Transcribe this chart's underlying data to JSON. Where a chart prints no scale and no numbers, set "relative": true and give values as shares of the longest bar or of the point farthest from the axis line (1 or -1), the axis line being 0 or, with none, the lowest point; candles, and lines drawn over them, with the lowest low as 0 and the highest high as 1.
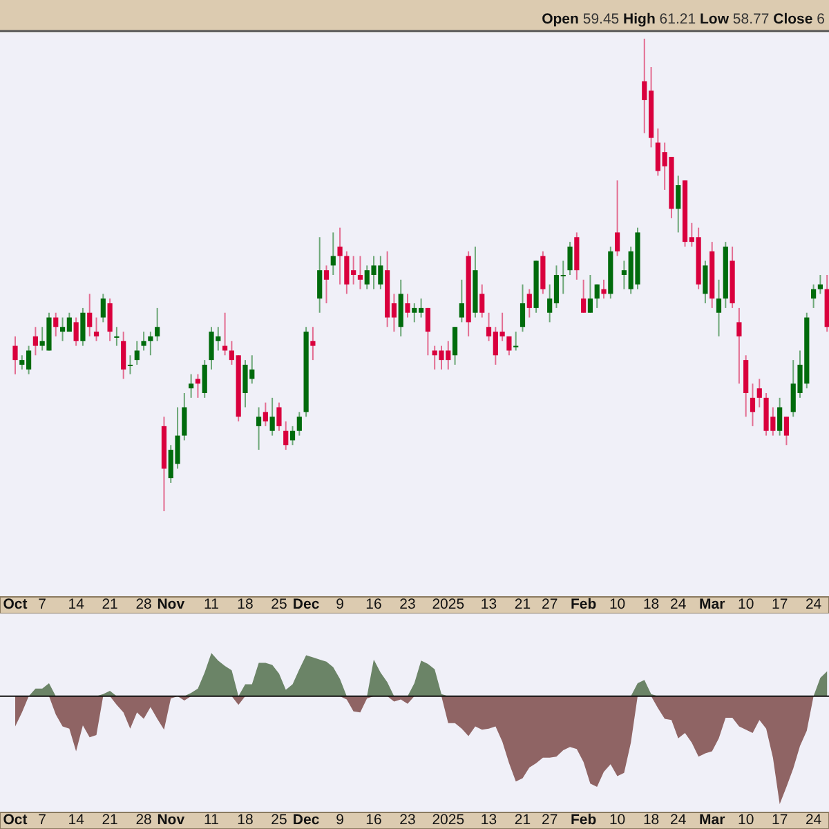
{
  "chart_data": [
    {
      "type": "candlestick",
      "relative": true,
      "annotations": [
        "Open 59.45 High 61.21 Low 58.77 Close 6"
      ],
      "categories": [
        "Oct",
        null,
        null,
        null,
        "7",
        null,
        null,
        null,
        null,
        "14",
        null,
        null,
        null,
        null,
        "21",
        null,
        null,
        null,
        null,
        "28",
        null,
        null,
        null,
        "Nov",
        null,
        null,
        null,
        null,
        null,
        "11",
        null,
        null,
        null,
        null,
        "18",
        null,
        null,
        null,
        null,
        "25",
        null,
        null,
        null,
        "Dec",
        null,
        null,
        null,
        null,
        "9",
        null,
        null,
        null,
        null,
        "16",
        null,
        null,
        null,
        null,
        "23",
        null,
        null,
        null,
        null,
        null,
        "2025",
        null,
        null,
        null,
        null,
        null,
        "13",
        null,
        null,
        null,
        null,
        "21",
        null,
        null,
        null,
        "27",
        null,
        null,
        null,
        null,
        "Feb",
        null,
        null,
        null,
        null,
        "10",
        null,
        null,
        null,
        null,
        "18",
        null,
        null,
        null,
        "24",
        null,
        null,
        null,
        null,
        "Mar",
        null,
        null,
        null,
        null,
        "10",
        null,
        null,
        null,
        null,
        "17",
        null,
        null,
        null,
        null,
        "24",
        null,
        null
      ],
      "ohlc": [
        [
          0.35,
          0.37,
          0.29,
          0.32
        ],
        [
          0.31,
          0.33,
          0.3,
          0.32
        ],
        [
          0.3,
          0.35,
          0.29,
          0.34
        ],
        [
          0.37,
          0.39,
          0.33,
          0.35
        ],
        [
          0.35,
          0.39,
          0.34,
          0.36
        ],
        [
          0.34,
          0.42,
          0.34,
          0.41
        ],
        [
          0.41,
          0.42,
          0.37,
          0.39
        ],
        [
          0.38,
          0.41,
          0.36,
          0.39
        ],
        [
          0.38,
          0.42,
          0.38,
          0.41
        ],
        [
          0.4,
          0.41,
          0.35,
          0.36
        ],
        [
          0.36,
          0.43,
          0.35,
          0.42
        ],
        [
          0.42,
          0.46,
          0.37,
          0.39
        ],
        [
          0.38,
          0.41,
          0.36,
          0.37
        ],
        [
          0.41,
          0.46,
          0.4,
          0.45
        ],
        [
          0.44,
          0.45,
          0.36,
          0.38
        ],
        [
          0.37,
          0.39,
          0.35,
          0.37
        ],
        [
          0.36,
          0.38,
          0.28,
          0.3
        ],
        [
          0.31,
          0.33,
          0.29,
          0.31
        ],
        [
          0.32,
          0.36,
          0.31,
          0.34
        ],
        [
          0.35,
          0.38,
          0.34,
          0.36
        ],
        [
          0.36,
          0.38,
          0.33,
          0.37
        ],
        [
          0.37,
          0.43,
          0.36,
          0.39
        ],
        [
          0.18,
          0.2,
          0,
          0.09
        ],
        [
          0.07,
          0.14,
          0.06,
          0.13
        ],
        [
          0.1,
          0.22,
          0.09,
          0.16
        ],
        [
          0.16,
          0.25,
          0.15,
          0.22
        ],
        [
          0.26,
          0.29,
          0.24,
          0.27
        ],
        [
          0.28,
          0.29,
          0.24,
          0.27
        ],
        [
          0.25,
          0.32,
          0.24,
          0.31
        ],
        [
          0.32,
          0.39,
          0.3,
          0.38
        ],
        [
          0.36,
          0.39,
          0.34,
          0.37
        ],
        [
          0.35,
          0.42,
          0.33,
          0.34
        ],
        [
          0.34,
          0.36,
          0.31,
          0.32
        ],
        [
          0.33,
          0.33,
          0.19,
          0.2
        ],
        [
          0.25,
          0.32,
          0.22,
          0.31
        ],
        [
          0.28,
          0.33,
          0.27,
          0.3
        ],
        [
          0.18,
          0.22,
          0.13,
          0.2
        ],
        [
          0.21,
          0.23,
          0.18,
          0.19
        ],
        [
          0.17,
          0.24,
          0.16,
          0.2
        ],
        [
          0.22,
          0.23,
          0.17,
          0.18
        ],
        [
          0.17,
          0.19,
          0.13,
          0.14
        ],
        [
          0.15,
          0.18,
          0.14,
          0.17
        ],
        [
          0.17,
          0.21,
          0.16,
          0.2
        ],
        [
          0.21,
          0.39,
          0.2,
          0.38
        ],
        [
          0.36,
          0.39,
          0.32,
          0.35
        ],
        [
          0.45,
          0.58,
          0.42,
          0.51
        ],
        [
          0.51,
          0.52,
          0.44,
          0.49
        ],
        [
          0.52,
          0.59,
          0.5,
          0.54
        ],
        [
          0.56,
          0.6,
          0.48,
          0.54
        ],
        [
          0.54,
          0.55,
          0.46,
          0.48
        ],
        [
          0.51,
          0.54,
          0.48,
          0.5
        ],
        [
          0.5,
          0.54,
          0.47,
          0.49
        ],
        [
          0.48,
          0.52,
          0.47,
          0.51
        ],
        [
          0.5,
          0.54,
          0.47,
          0.52
        ],
        [
          0.48,
          0.54,
          0.47,
          0.52
        ],
        [
          0.51,
          0.55,
          0.39,
          0.41
        ],
        [
          0.44,
          0.46,
          0.38,
          0.41
        ],
        [
          0.39,
          0.49,
          0.37,
          0.46
        ],
        [
          0.44,
          0.46,
          0.41,
          0.42
        ],
        [
          0.42,
          0.44,
          0.4,
          0.43
        ],
        [
          0.42,
          0.45,
          0.41,
          0.43
        ],
        [
          0.43,
          0.43,
          0.33,
          0.38
        ],
        [
          0.34,
          0.35,
          0.3,
          0.33
        ],
        [
          0.34,
          0.35,
          0.3,
          0.32
        ],
        [
          0.34,
          0.36,
          0.3,
          0.32
        ],
        [
          0.33,
          0.39,
          0.31,
          0.39
        ],
        [
          0.41,
          0.49,
          0.4,
          0.44
        ],
        [
          0.54,
          0.55,
          0.37,
          0.4
        ],
        [
          0.42,
          0.56,
          0.41,
          0.51
        ],
        [
          0.46,
          0.48,
          0.41,
          0.42
        ],
        [
          0.39,
          0.42,
          0.36,
          0.37
        ],
        [
          0.38,
          0.39,
          0.31,
          0.33
        ],
        [
          0.38,
          0.42,
          0.36,
          0.37
        ],
        [
          0.37,
          0.37,
          0.33,
          0.34
        ],
        [
          0.35,
          0.38,
          0.34,
          0.35
        ],
        [
          0.39,
          0.48,
          0.38,
          0.44
        ],
        [
          0.46,
          0.47,
          0.41,
          0.43
        ],
        [
          0.43,
          0.53,
          0.42,
          0.53
        ],
        [
          0.54,
          0.55,
          0.46,
          0.47
        ],
        [
          0.42,
          0.48,
          0.4,
          0.45
        ],
        [
          0.44,
          0.52,
          0.43,
          0.5
        ],
        [
          0.5,
          0.53,
          0.46,
          0.5
        ],
        [
          0.51,
          0.57,
          0.5,
          0.56
        ],
        [
          0.58,
          0.59,
          0.49,
          0.51
        ],
        [
          0.45,
          0.49,
          0.42,
          0.42
        ],
        [
          0.42,
          0.5,
          0.42,
          0.45
        ],
        [
          0.45,
          0.48,
          0.43,
          0.48
        ],
        [
          0.47,
          0.49,
          0.45,
          0.46
        ],
        [
          0.46,
          0.56,
          0.45,
          0.55
        ],
        [
          0.59,
          0.7,
          0.54,
          0.55
        ],
        [
          0.5,
          0.53,
          0.47,
          0.51
        ],
        [
          0.47,
          0.56,
          0.46,
          0.55
        ],
        [
          0.48,
          0.6,
          0.47,
          0.59
        ],
        [
          0.91,
          1,
          0.8,
          0.87
        ],
        [
          0.89,
          0.94,
          0.77,
          0.79
        ],
        [
          0.78,
          0.81,
          0.71,
          0.72
        ],
        [
          0.76,
          0.78,
          0.68,
          0.73
        ],
        [
          0.75,
          0.75,
          0.62,
          0.64
        ],
        [
          0.64,
          0.71,
          0.59,
          0.69
        ],
        [
          0.7,
          0.7,
          0.56,
          0.57
        ],
        [
          0.58,
          0.61,
          0.56,
          0.57
        ],
        [
          0.58,
          0.6,
          0.47,
          0.48
        ],
        [
          0.46,
          0.53,
          0.44,
          0.52
        ],
        [
          0.55,
          0.57,
          0.43,
          0.45
        ],
        [
          0.42,
          0.49,
          0.37,
          0.45
        ],
        [
          0.45,
          0.57,
          0.43,
          0.56
        ],
        [
          0.53,
          0.56,
          0.43,
          0.44
        ],
        [
          0.4,
          0.43,
          0.27,
          0.37
        ],
        [
          0.32,
          0.33,
          0.2,
          0.25
        ],
        [
          0.24,
          0.27,
          0.18,
          0.21
        ],
        [
          0.26,
          0.28,
          0.22,
          0.24
        ],
        [
          0.24,
          0.25,
          0.16,
          0.17
        ],
        [
          0.2,
          0.22,
          0.16,
          0.17
        ],
        [
          0.17,
          0.24,
          0.16,
          0.22
        ],
        [
          0.2,
          0.2,
          0.14,
          0.16
        ],
        [
          0.21,
          0.32,
          0.2,
          0.27
        ],
        [
          0.25,
          0.34,
          0.24,
          0.31
        ],
        [
          0.27,
          0.42,
          0.26,
          0.41
        ],
        [
          0.45,
          0.48,
          0.43,
          0.47
        ],
        [
          0.47,
          0.5,
          0.46,
          0.48
        ],
        [
          0.47,
          0.5,
          0.38,
          0.39
        ]
      ]
    },
    {
      "type": "area",
      "relative": true,
      "categories": [
        "Oct",
        null,
        null,
        null,
        "7",
        null,
        null,
        null,
        null,
        "14",
        null,
        null,
        null,
        null,
        "21",
        null,
        null,
        null,
        null,
        "28",
        null,
        null,
        null,
        "Nov",
        null,
        null,
        null,
        null,
        null,
        "11",
        null,
        null,
        null,
        null,
        "18",
        null,
        null,
        null,
        null,
        "25",
        null,
        null,
        null,
        "Dec",
        null,
        null,
        null,
        null,
        "9",
        null,
        null,
        null,
        null,
        "16",
        null,
        null,
        null,
        null,
        "23",
        null,
        null,
        null,
        null,
        null,
        "2025",
        null,
        null,
        null,
        null,
        null,
        "13",
        null,
        null,
        null,
        null,
        "21",
        null,
        null,
        null,
        "27",
        null,
        null,
        null,
        null,
        "Feb",
        null,
        null,
        null,
        null,
        "10",
        null,
        null,
        null,
        null,
        "18",
        null,
        null,
        null,
        "24",
        null,
        null,
        null,
        null,
        "Mar",
        null,
        null,
        null,
        null,
        "10",
        null,
        null,
        null,
        null,
        "17",
        null,
        null,
        null,
        null,
        "24",
        null,
        null
      ],
      "series": [
        {
          "color": "#6b8467",
          "values": [
            0,
            0,
            0,
            0.07,
            0.07,
            0.12,
            0,
            0,
            0,
            0,
            0,
            0,
            0,
            0.02,
            0.05,
            0,
            0,
            0,
            0,
            0,
            0,
            0,
            0,
            0,
            0,
            0,
            0.03,
            0.07,
            0.22,
            0.4,
            0.33,
            0.28,
            0.24,
            0,
            0.11,
            0.11,
            0.31,
            0.31,
            0.29,
            0.21,
            0.06,
            0.11,
            0.25,
            0.38,
            0.36,
            0.34,
            0.32,
            0.27,
            0.16,
            0,
            0,
            0,
            0,
            0.34,
            0.22,
            0.13,
            0,
            0,
            0,
            0.12,
            0.33,
            0.3,
            0.25,
            0.02,
            0,
            0,
            0,
            0,
            0,
            0,
            0,
            0,
            0,
            0,
            0,
            0,
            0,
            0,
            0,
            0,
            0,
            0,
            0,
            0,
            0,
            0,
            0,
            0,
            0,
            0,
            0,
            0,
            0.12,
            0.15,
            0.02,
            0,
            0,
            0,
            0,
            0,
            0,
            0,
            0,
            0,
            0,
            0,
            0,
            0,
            0,
            0,
            0,
            0,
            0,
            0,
            0,
            0,
            0,
            0,
            0,
            0.17,
            0.23
          ]
        },
        {
          "color": "#8f6464",
          "values": [
            -0.28,
            -0.15,
            0,
            0,
            0,
            0,
            -0.17,
            -0.28,
            -0.3,
            -0.51,
            -0.27,
            -0.38,
            -0.36,
            0,
            0,
            -0.08,
            -0.15,
            -0.3,
            -0.15,
            -0.21,
            -0.1,
            -0.21,
            -0.31,
            -0.02,
            0,
            -0.04,
            0,
            0,
            0,
            0,
            0,
            0,
            0,
            -0.08,
            0,
            0,
            0,
            0,
            0,
            0,
            0,
            0,
            0,
            0,
            0,
            0,
            0,
            0,
            0,
            -0.03,
            -0.14,
            -0.15,
            -0.02,
            0,
            0,
            0,
            -0.05,
            -0.03,
            -0.07,
            0,
            0,
            0,
            0,
            0,
            -0.25,
            -0.25,
            -0.3,
            -0.37,
            -0.28,
            -0.31,
            -0.3,
            -0.28,
            -0.42,
            -0.62,
            -0.79,
            -0.76,
            -0.66,
            -0.62,
            -0.57,
            -0.57,
            -0.56,
            -0.5,
            -0.47,
            -0.49,
            -0.61,
            -0.81,
            -0.84,
            -0.7,
            -0.63,
            -0.74,
            -0.71,
            -0.43,
            0,
            0,
            0,
            -0.11,
            -0.21,
            -0.22,
            -0.39,
            -0.34,
            -0.43,
            -0.56,
            -0.53,
            -0.51,
            -0.39,
            -0.2,
            -0.2,
            -0.28,
            -0.31,
            -0.34,
            -0.22,
            -0.3,
            -0.57,
            -1,
            -0.84,
            -0.67,
            -0.46,
            -0.32,
            0,
            0,
            0
          ]
        }
      ]
    }
  ]
}
